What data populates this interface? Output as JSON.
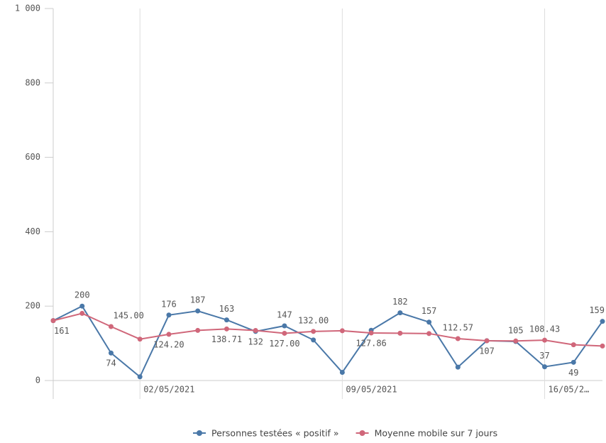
{
  "chart_data": {
    "type": "line",
    "categories": [
      null,
      null,
      null,
      "02/05/2021",
      null,
      null,
      null,
      null,
      null,
      null,
      "09/05/2021",
      null,
      null,
      null,
      null,
      null,
      null,
      "16/05/2…",
      null,
      null
    ],
    "series": [
      {
        "name": "Personnes testées « positif »",
        "color": "#4a78a8",
        "values": [
          161,
          200,
          74,
          10,
          176,
          187,
          163,
          132,
          147,
          109,
          22,
          135,
          182,
          157,
          36,
          107,
          105,
          37,
          49,
          159
        ],
        "value_labels": [
          "161",
          "200",
          "74",
          null,
          "176",
          "187",
          "163",
          "132",
          "147",
          null,
          null,
          null,
          "182",
          "157",
          null,
          "107",
          "105",
          "37",
          "49",
          "159"
        ]
      },
      {
        "name": "Moyenne mobile sur 7 jours",
        "color": "#d0677a",
        "values": [
          161,
          180.5,
          145,
          111.25,
          124.2,
          134.67,
          138.71,
          134.57,
          127,
          132,
          133.71,
          127.86,
          127.14,
          126.29,
          112.57,
          106.86,
          106.29,
          108.43,
          96.14,
          92.86
        ],
        "value_labels": [
          null,
          null,
          "145.00",
          null,
          "124.20",
          null,
          "138.71",
          null,
          "127.00",
          "132.00",
          null,
          "127.86",
          null,
          null,
          "112.57",
          null,
          null,
          "108.43",
          null,
          null
        ]
      }
    ],
    "ylim": [
      0,
      1000
    ],
    "yticks": [
      0,
      200,
      400,
      600,
      800,
      {
        "value": 1000,
        "label": "1 000"
      }
    ],
    "legend": "bottom"
  }
}
